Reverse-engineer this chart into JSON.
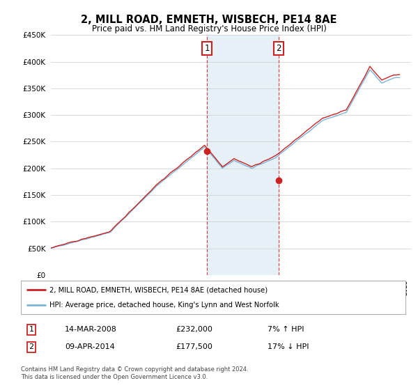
{
  "title": "2, MILL ROAD, EMNETH, WISBECH, PE14 8AE",
  "subtitle": "Price paid vs. HM Land Registry's House Price Index (HPI)",
  "legend_line1": "2, MILL ROAD, EMNETH, WISBECH, PE14 8AE (detached house)",
  "legend_line2": "HPI: Average price, detached house, King's Lynn and West Norfolk",
  "transaction1_date": "14-MAR-2008",
  "transaction1_price": "£232,000",
  "transaction1_hpi": "7% ↑ HPI",
  "transaction2_date": "09-APR-2014",
  "transaction2_price": "£177,500",
  "transaction2_hpi": "17% ↓ HPI",
  "footnote": "Contains HM Land Registry data © Crown copyright and database right 2024.\nThis data is licensed under the Open Government Licence v3.0.",
  "sale1_year": 2008.2,
  "sale1_value": 232000,
  "sale2_year": 2014.27,
  "sale2_value": 177500,
  "hpi_color": "#7ab4d8",
  "price_color": "#cc2222",
  "shading_color": "#daeaf5",
  "ylim_min": 0,
  "ylim_max": 450000,
  "xlim_min": 1995,
  "xlim_max": 2025.5
}
